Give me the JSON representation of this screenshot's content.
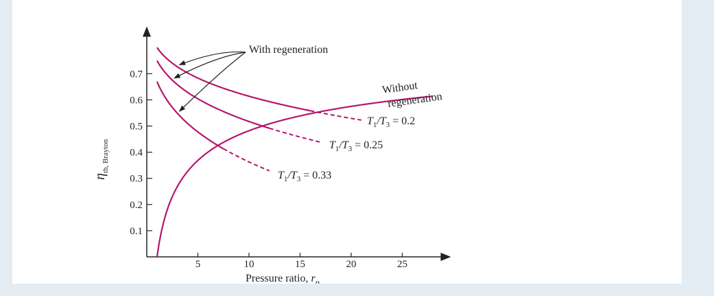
{
  "chart_data": {
    "type": "line",
    "xlabel_text": "Pressure ratio, ",
    "xlabel_var": "r",
    "xlabel_sub": "p",
    "ylabel_var": "η",
    "ylabel_sub": "th, Brayton",
    "xlim": [
      0,
      29
    ],
    "ylim": [
      0,
      0.82
    ],
    "x_ticks": [
      5,
      10,
      15,
      20,
      25
    ],
    "y_ticks": [
      0.1,
      0.2,
      0.3,
      0.4,
      0.5,
      0.6,
      0.7
    ],
    "x_tick_labels": [
      "5",
      "10",
      "15",
      "20",
      "25"
    ],
    "y_tick_labels": [
      "0.1",
      "0.2",
      "0.3",
      "0.4",
      "0.5",
      "0.6",
      "0.7"
    ],
    "line_color": "#b5166b",
    "without_regeneration": {
      "label_line1": "Without",
      "label_line2": "regeneration",
      "gamma": 1.4,
      "x_range": [
        1.0,
        28.0
      ]
    },
    "with_regeneration": {
      "label": "With regeneration",
      "series": [
        {
          "t_ratio": 0.2,
          "label_var": "T",
          "label_expr": "1/T3 = 0.2",
          "label_sub1": "1",
          "label_sub2": "3",
          "label_value": " = 0.2",
          "x_solid": [
            1.0,
            16.0
          ],
          "x_dashed": [
            16.0,
            21.0
          ],
          "arrow_x": 3.0
        },
        {
          "t_ratio": 0.25,
          "label_var": "T",
          "label_expr": "1/T3 = 0.25",
          "label_sub1": "1",
          "label_sub2": "3",
          "label_value": " = 0.25",
          "x_solid": [
            1.0,
            12.0
          ],
          "x_dashed": [
            12.0,
            17.0
          ],
          "arrow_x": 2.5
        },
        {
          "t_ratio": 0.33,
          "label_var": "T",
          "label_expr": "1/T3 = 0.33",
          "label_sub1": "1",
          "label_sub2": "3",
          "label_value": " = 0.33",
          "x_solid": [
            1.0,
            7.5
          ],
          "x_dashed": [
            7.5,
            12.0
          ],
          "arrow_x": 3.0
        }
      ]
    }
  }
}
